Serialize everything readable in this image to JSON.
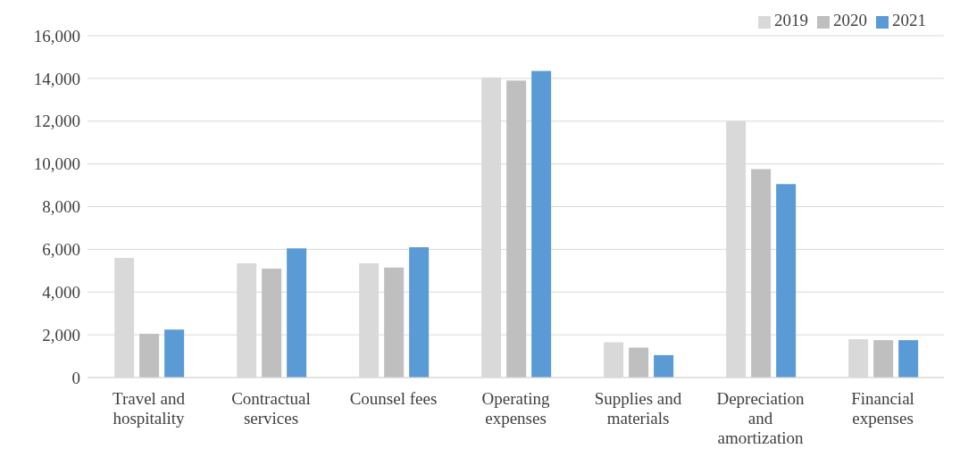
{
  "chart_data": {
    "type": "bar",
    "categories": [
      "Travel and hospitality",
      "Contractual services",
      "Counsel fees",
      "Operating expenses",
      "Supplies and materials",
      "Depreciation and amortization",
      "Financial expenses"
    ],
    "series": [
      {
        "name": "2019",
        "color": "#d9d9d9",
        "values": [
          5600,
          5350,
          5350,
          14050,
          1650,
          12000,
          1800
        ]
      },
      {
        "name": "2020",
        "color": "#bfbfbf",
        "values": [
          2050,
          5100,
          5150,
          13900,
          1400,
          9750,
          1750
        ]
      },
      {
        "name": "2021",
        "color": "#5b9bd5",
        "values": [
          2250,
          6050,
          6100,
          14350,
          1050,
          9050,
          1750
        ]
      }
    ],
    "ylim": [
      0,
      16000
    ],
    "yticks": [
      0,
      {
        "value": 2000,
        "label": "2,000"
      },
      {
        "value": 4000,
        "label": "4,000"
      },
      {
        "value": 6000,
        "label": "6,000"
      },
      {
        "value": 8000,
        "label": "8,000"
      },
      {
        "value": 10000,
        "label": "10,000"
      },
      {
        "value": 12000,
        "label": "12,000"
      },
      {
        "value": 14000,
        "label": "14,000"
      },
      {
        "value": 16000,
        "label": "16,000"
      }
    ],
    "grid": "y",
    "legend": "top right"
  }
}
